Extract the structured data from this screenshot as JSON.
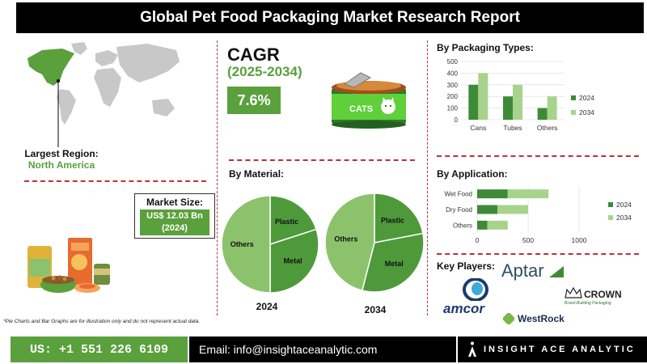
{
  "header": {
    "title": "Global Pet Food Packaging Market Research Report"
  },
  "region": {
    "label": "Largest Region:",
    "value": "North America"
  },
  "market_size": {
    "label": "Market Size:",
    "value_line1": "US$ 12.03 Bn",
    "value_line2": "(2024)"
  },
  "cagr": {
    "label": "CAGR",
    "period": "(2025-2034)",
    "value": "7.6%"
  },
  "can_label": "CATS",
  "sections": {
    "packaging": "By Packaging Types:",
    "material": "By Material:",
    "application": "By Application:",
    "players": "Key Players:"
  },
  "colors": {
    "accent_green": "#5aa03c",
    "dark_green": "#3d8b37",
    "light_green": "#a8d38d",
    "pie_light": "#8cc26c",
    "pie_dark": "#4e9a3a",
    "divider": "#b33333"
  },
  "chart_data": [
    {
      "type": "bar",
      "title": "By Packaging Types:",
      "categories": [
        "Cans",
        "Tubes",
        "Others"
      ],
      "series": [
        {
          "name": "2024",
          "values": [
            300,
            200,
            100
          ]
        },
        {
          "name": "2034",
          "values": [
            400,
            300,
            200
          ]
        }
      ],
      "y_ticks": [
        0,
        100,
        200,
        300,
        400,
        500
      ],
      "ylim": [
        0,
        500
      ],
      "legend": "right"
    },
    {
      "type": "pie",
      "title": "By Material:",
      "year": "2024",
      "slices": [
        {
          "label": "Plastic",
          "value": 20
        },
        {
          "label": "Metal",
          "value": 30
        },
        {
          "label": "Others",
          "value": 50
        }
      ]
    },
    {
      "type": "pie",
      "title": "By Material:",
      "year": "2034",
      "slices": [
        {
          "label": "Plastic",
          "value": 22
        },
        {
          "label": "Metal",
          "value": 32
        },
        {
          "label": "Others",
          "value": 46
        }
      ]
    },
    {
      "type": "bar",
      "orientation": "horizontal",
      "title": "By Application:",
      "categories": [
        "Wet Food",
        "Dry Food",
        "Others"
      ],
      "series": [
        {
          "name": "2024",
          "values": [
            300,
            200,
            100
          ]
        },
        {
          "name": "2034",
          "values": [
            400,
            300,
            200
          ]
        }
      ],
      "x_ticks": [
        0,
        500,
        1000
      ],
      "xlim": [
        0,
        1000
      ],
      "stacked": true,
      "legend": "right"
    }
  ],
  "players": {
    "aptar": "Aptar",
    "amcor": "amcor",
    "westrock": "WestRock",
    "crown": "CROWN",
    "crown_tagline": "Brand-Building Packaging"
  },
  "footnote": "*Pie Charts and Bar Graphs are for illustration only and do not represent actual data.",
  "footer": {
    "phone": "US: +1 551 226 6109",
    "email": "Email: info@insightaceanalytic.com",
    "brand": "INSIGHT ACE ANALYTIC"
  }
}
